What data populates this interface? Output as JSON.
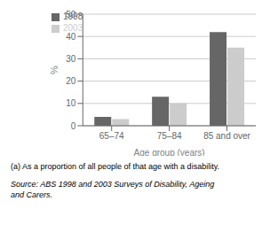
{
  "chart_data": {
    "type": "bar",
    "categories": [
      "65–74",
      "75–84",
      "85 and over"
    ],
    "series": [
      {
        "name": "1998",
        "color": "#666666",
        "values": [
          4.0,
          13.0,
          42.0
        ]
      },
      {
        "name": "2003",
        "color": "#cccccc",
        "values": [
          3.0,
          10.0,
          35.0
        ]
      }
    ],
    "xlabel": "Age group (years)",
    "ylabel": "%",
    "ylim": [
      0,
      50
    ],
    "yticks": [
      0,
      10,
      20,
      30,
      40,
      50
    ],
    "grid": true,
    "legend": "upper left",
    "footnote": "(a) As a proportion of all people of that age with a disability.",
    "source": "Source: ABS 1998 and 2003 Surveys of Disability, Ageing\nand Carers."
  }
}
